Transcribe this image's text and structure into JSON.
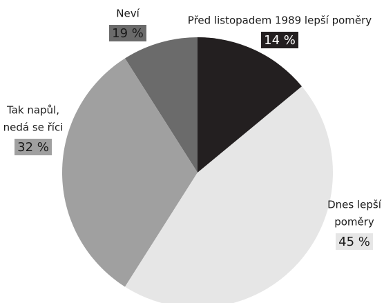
{
  "chart_data": {
    "type": "pie",
    "categories": [
      [
        "Před listopadem 1989 lepší poměry"
      ],
      [
        "Dnes lepší",
        "poměry"
      ],
      [
        "Tak napůl,",
        "nedá se říci"
      ],
      [
        "Neví"
      ]
    ],
    "values": [
      14,
      45,
      32,
      19
    ],
    "value_labels": [
      "14 %",
      "45 %",
      "32 %",
      "19 %"
    ],
    "colors": [
      "#231f20",
      "#e6e6e6",
      "#a0a0a0",
      "#6b6b6b"
    ]
  }
}
